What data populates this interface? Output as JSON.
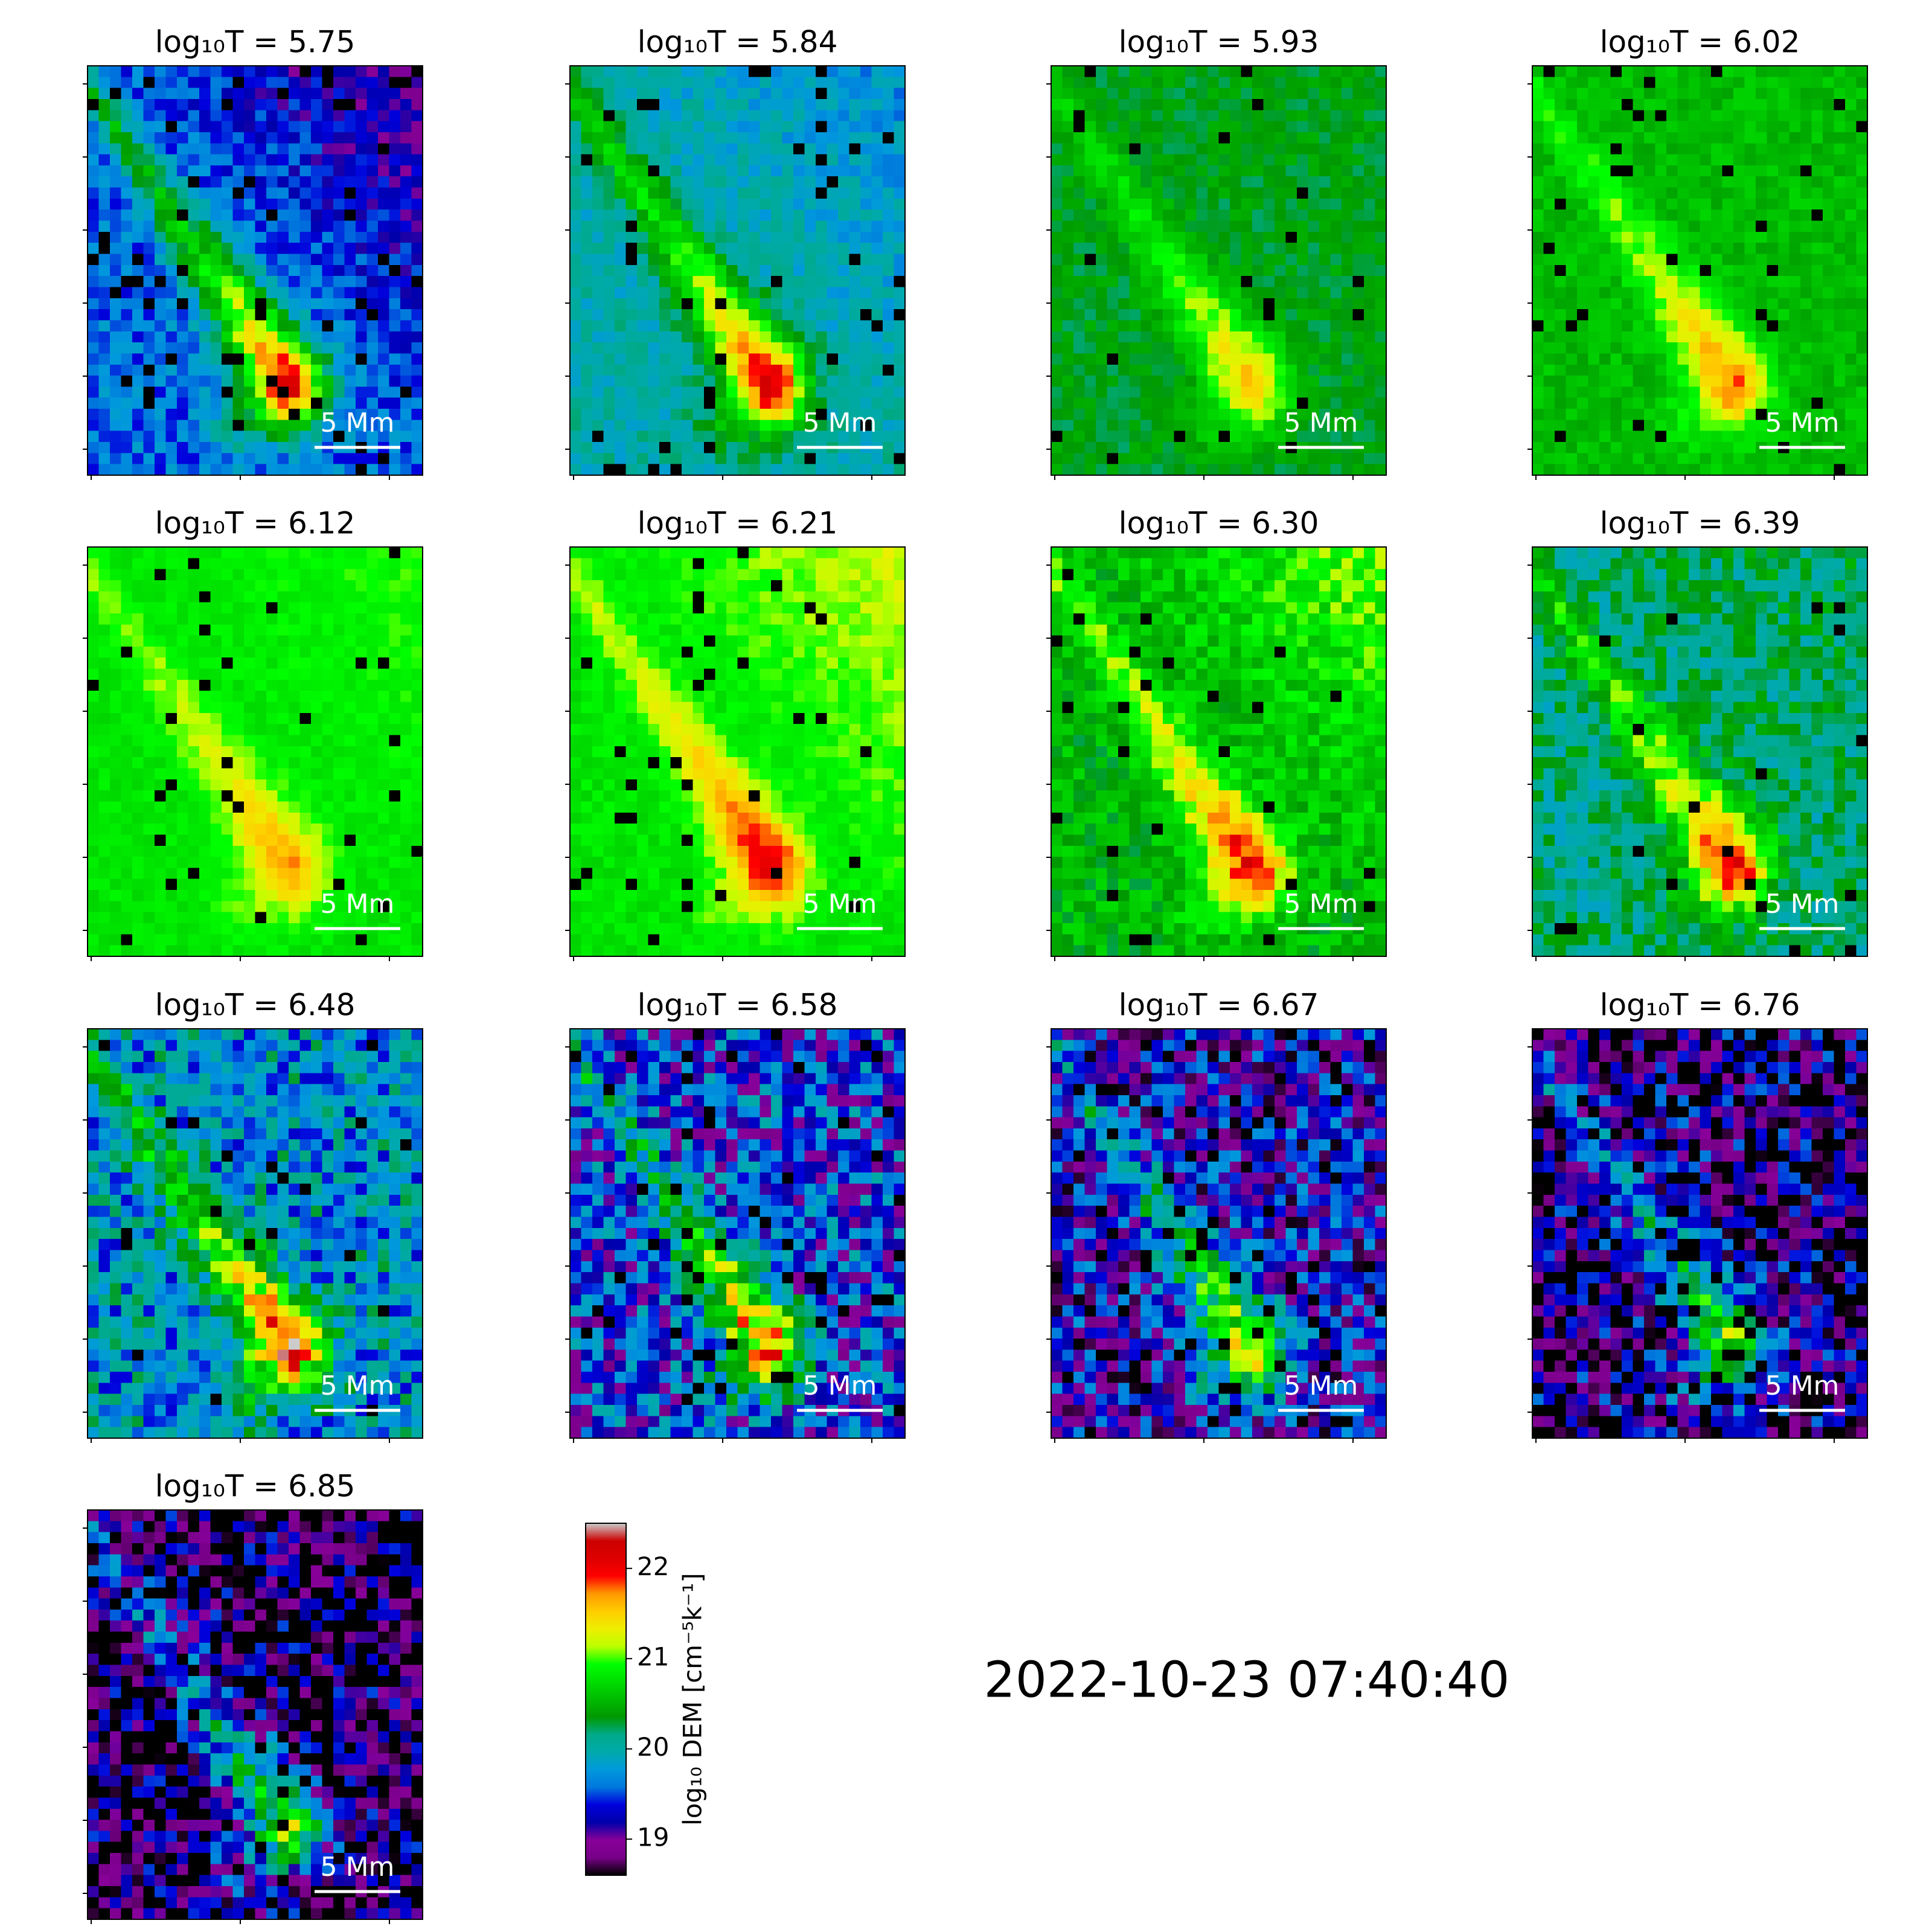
{
  "chart_data": {
    "type": "heatmap",
    "panels": [
      "log₁₀T = 5.75",
      "log₁₀T = 5.84",
      "log₁₀T = 5.93",
      "log₁₀T = 6.02",
      "log₁₀T = 6.12",
      "log₁₀T = 6.21",
      "log₁₀T = 6.30",
      "log₁₀T = 6.39",
      "log₁₀T = 6.48",
      "log₁₀T = 6.58",
      "log₁₀T = 6.67",
      "log₁₀T = 6.76",
      "log₁₀T = 6.85"
    ],
    "scale_bar_label": "5 Mm",
    "colorbar": {
      "label": "log₁₀ DEM [cm⁻⁵k⁻¹]",
      "lim": [
        18.6,
        22.5
      ],
      "ticks": [
        19,
        20,
        21,
        22
      ]
    },
    "annotation": "2022-10-23 07:40:40"
  }
}
